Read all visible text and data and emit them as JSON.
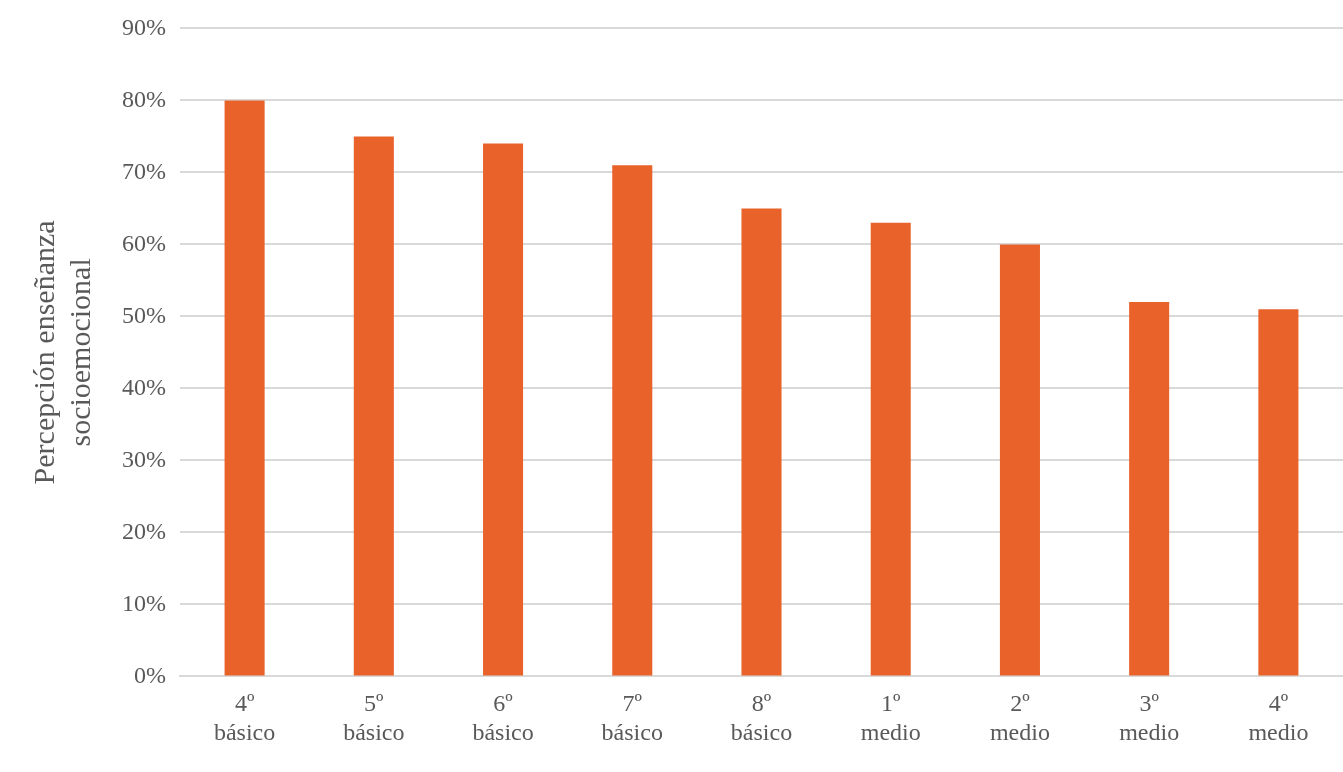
{
  "chart_data": {
    "type": "bar",
    "ylabel": "Percepción enseñanza socioemocional",
    "categories": [
      "4º básico",
      "5º básico",
      "6º básico",
      "7º básico",
      "8º básico",
      "1º medio",
      "2º medio",
      "3º medio",
      "4º medio"
    ],
    "values": [
      80,
      75,
      74,
      71,
      65,
      63,
      60,
      52,
      51
    ],
    "color": "#e8622a",
    "ylim": [
      0,
      90
    ],
    "yticks": [
      {
        "value": 0,
        "label": "0%"
      },
      {
        "value": 10,
        "label": "10%"
      },
      {
        "value": 20,
        "label": "20%"
      },
      {
        "value": 30,
        "label": "30%"
      },
      {
        "value": 40,
        "label": "40%"
      },
      {
        "value": 50,
        "label": "50%"
      },
      {
        "value": 60,
        "label": "60%"
      },
      {
        "value": 70,
        "label": "70%"
      },
      {
        "value": 80,
        "label": "80%"
      },
      {
        "value": 90,
        "label": "90%"
      }
    ],
    "grid": "y",
    "legend": false
  }
}
